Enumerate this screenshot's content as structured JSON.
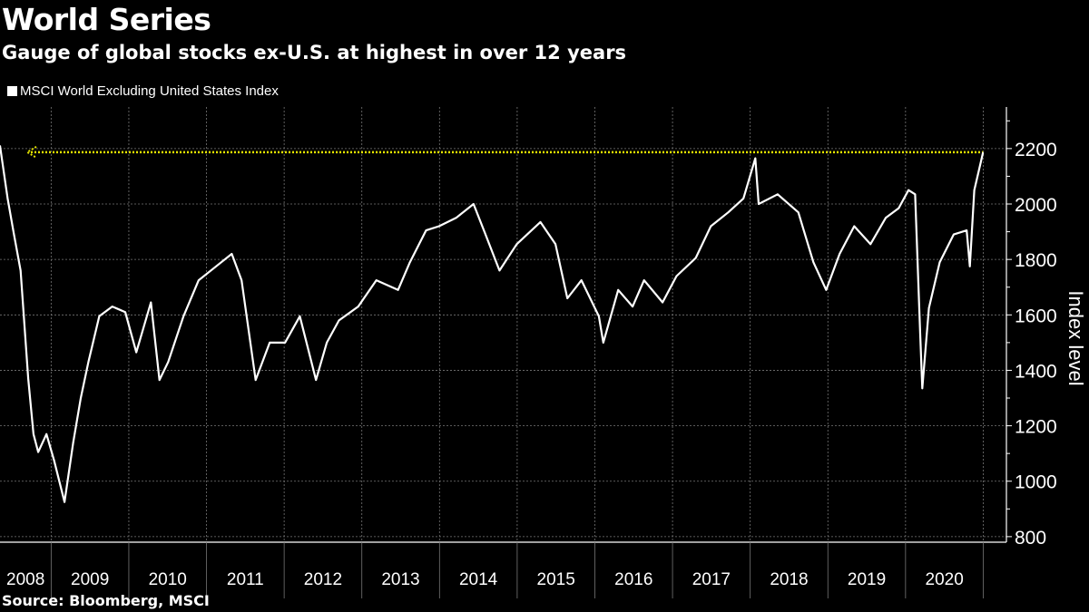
{
  "header": {
    "title": "World Series",
    "subtitle": "Gauge of global stocks ex-U.S. at highest in over 12 years"
  },
  "footer": {
    "source": "Source: Bloomberg, MSCI"
  },
  "colors": {
    "background": "#000000",
    "series": "#ffffff",
    "reference_line": "#e6e600",
    "grid": "#777777"
  },
  "chart_data": {
    "type": "line",
    "title": "World Series",
    "subtitle": "Gauge of global stocks ex-U.S. at highest in over 12 years",
    "legend": {
      "position": "top-left",
      "entries": [
        "MSCI World Excluding United States Index"
      ]
    },
    "ylabel": "Index level",
    "ylim": [
      780,
      2350
    ],
    "yticks": [
      800,
      1000,
      1200,
      1400,
      1600,
      1800,
      2000,
      2200
    ],
    "xlim": [
      "2008-05-05",
      "2021-04-20"
    ],
    "xtick_labels": [
      "2008",
      "2009",
      "2010",
      "2011",
      "2012",
      "2013",
      "2014",
      "2015",
      "2016",
      "2017",
      "2018",
      "2019",
      "2020"
    ],
    "grid": true,
    "y_axis_side": "right",
    "reference_line": {
      "value": 2187,
      "style": "dotted",
      "color": "#e6e600",
      "arrow": "left"
    },
    "series": [
      {
        "name": "MSCI World Excluding United States Index",
        "x": [
          "2008-05-05",
          "2008-06-10",
          "2008-07-10",
          "2008-08-10",
          "2008-09-15",
          "2008-10-10",
          "2008-11-01",
          "2008-12-10",
          "2009-01-15",
          "2009-03-05",
          "2009-04-15",
          "2009-05-20",
          "2009-06-25",
          "2009-08-15",
          "2009-10-15",
          "2009-12-15",
          "2010-02-05",
          "2010-04-15",
          "2010-05-25",
          "2010-07-05",
          "2010-09-15",
          "2010-11-25",
          "2011-02-15",
          "2011-04-30",
          "2011-06-15",
          "2011-08-20",
          "2011-10-25",
          "2012-01-05",
          "2012-03-15",
          "2012-05-30",
          "2012-07-20",
          "2012-09-15",
          "2012-12-15",
          "2013-03-10",
          "2013-06-20",
          "2013-08-15",
          "2013-10-30",
          "2013-12-30",
          "2014-03-20",
          "2014-06-10",
          "2014-08-05",
          "2014-10-10",
          "2014-12-30",
          "2015-04-20",
          "2015-06-30",
          "2015-08-25",
          "2015-10-30",
          "2016-01-20",
          "2016-02-10",
          "2016-04-20",
          "2016-06-27",
          "2016-08-20",
          "2016-11-15",
          "2017-01-20",
          "2017-04-20",
          "2017-06-30",
          "2017-09-20",
          "2017-11-30",
          "2018-01-25",
          "2018-02-10",
          "2018-05-10",
          "2018-08-15",
          "2018-10-25",
          "2018-12-24",
          "2019-02-25",
          "2019-05-05",
          "2019-07-20",
          "2019-09-30",
          "2019-11-30",
          "2020-01-15",
          "2020-02-15",
          "2020-03-10",
          "2020-03-20",
          "2020-04-20",
          "2020-06-10",
          "2020-08-15",
          "2020-10-15",
          "2020-10-30",
          "2020-11-20",
          "2020-12-31"
        ],
        "y": [
          2210,
          2020,
          1890,
          1760,
          1370,
          1170,
          1105,
          1170,
          1075,
          925,
          1140,
          1300,
          1430,
          1595,
          1630,
          1610,
          1465,
          1645,
          1365,
          1430,
          1595,
          1725,
          1775,
          1820,
          1725,
          1365,
          1500,
          1500,
          1595,
          1365,
          1500,
          1580,
          1630,
          1725,
          1690,
          1790,
          1905,
          1920,
          1950,
          2000,
          1890,
          1760,
          1855,
          1935,
          1855,
          1660,
          1725,
          1595,
          1500,
          1690,
          1630,
          1725,
          1645,
          1740,
          1805,
          1920,
          1970,
          2020,
          2165,
          2000,
          2035,
          1970,
          1790,
          1690,
          1820,
          1920,
          1855,
          1950,
          1985,
          2050,
          2035,
          1530,
          1335,
          1625,
          1790,
          1890,
          1905,
          1775,
          2050,
          2185
        ]
      }
    ]
  }
}
